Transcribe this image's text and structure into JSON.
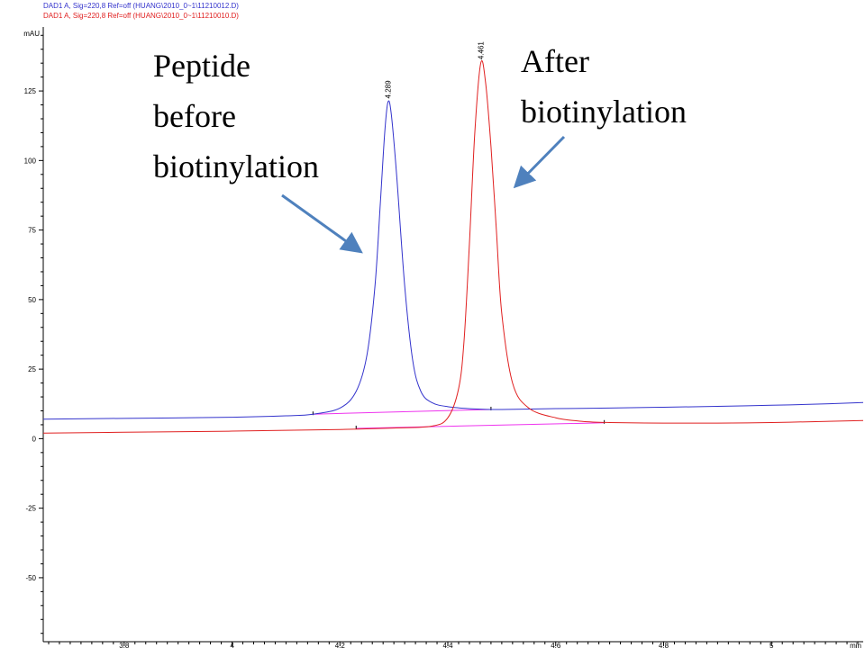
{
  "header": {
    "signal_1": "DAD1 A, Sig=220,8 Ref=off (HUANG\\2010_0~1\\11210012.D)",
    "signal_2": "DAD1 A, Sig=220,8 Ref=off (HUANG\\2010_0~1\\11210010.D)"
  },
  "annotations": {
    "before": [
      "Peptide",
      "before",
      "biotinylation"
    ],
    "after": [
      "After",
      "biotinylation"
    ]
  },
  "colors": {
    "before": "#3333cc",
    "after": "#e02020",
    "baseline": "#ee33ee",
    "arrow": "#4f81bd"
  },
  "chart_data": {
    "type": "line",
    "ylabel": "mAU",
    "xlabel": "min",
    "xlim": [
      3.65,
      5.17
    ],
    "ylim": [
      -73,
      148
    ],
    "xticks": [
      3.8,
      4,
      4.2,
      4.4,
      4.6,
      4.8,
      5
    ],
    "xtick_labels": [
      "3.8",
      "4",
      "4.2",
      "4.4",
      "4.6",
      "4.8",
      "5"
    ],
    "yticks": [
      125,
      100,
      75,
      50,
      25,
      0,
      -25,
      -50
    ],
    "ytick_labels": [
      "125",
      "100",
      "75",
      "50",
      "25",
      "0",
      "-25",
      "-50"
    ],
    "series": [
      {
        "key": "before",
        "peak_label": "4.289",
        "points": [
          [
            3.65,
            7
          ],
          [
            3.8,
            7.3
          ],
          [
            4.0,
            7.7
          ],
          [
            4.1,
            8.2
          ],
          [
            4.15,
            8.8
          ],
          [
            4.2,
            11
          ],
          [
            4.23,
            17
          ],
          [
            4.25,
            30
          ],
          [
            4.265,
            55
          ],
          [
            4.275,
            85
          ],
          [
            4.283,
            110
          ],
          [
            4.289,
            121
          ],
          [
            4.295,
            117
          ],
          [
            4.305,
            95
          ],
          [
            4.32,
            55
          ],
          [
            4.335,
            28
          ],
          [
            4.35,
            17
          ],
          [
            4.37,
            13
          ],
          [
            4.4,
            11.5
          ],
          [
            4.45,
            10.7
          ],
          [
            4.5,
            10.5
          ],
          [
            4.6,
            10.8
          ],
          [
            4.7,
            11
          ],
          [
            4.8,
            11.3
          ],
          [
            4.9,
            11.6
          ],
          [
            5.0,
            12
          ],
          [
            5.1,
            12.5
          ],
          [
            5.17,
            13
          ]
        ]
      },
      {
        "key": "after",
        "peak_label": "4.461",
        "points": [
          [
            3.65,
            2
          ],
          [
            3.8,
            2.3
          ],
          [
            4.0,
            2.7
          ],
          [
            4.1,
            3
          ],
          [
            4.2,
            3.3
          ],
          [
            4.3,
            3.8
          ],
          [
            4.37,
            4.5
          ],
          [
            4.4,
            7.5
          ],
          [
            4.42,
            18
          ],
          [
            4.43,
            35
          ],
          [
            4.44,
            70
          ],
          [
            4.45,
            110
          ],
          [
            4.461,
            135
          ],
          [
            4.47,
            128
          ],
          [
            4.48,
            105
          ],
          [
            4.49,
            75
          ],
          [
            4.5,
            45
          ],
          [
            4.52,
            20
          ],
          [
            4.55,
            11
          ],
          [
            4.6,
            7.5
          ],
          [
            4.65,
            6.2
          ],
          [
            4.7,
            5.8
          ],
          [
            4.8,
            5.6
          ],
          [
            4.9,
            5.6
          ],
          [
            5.0,
            5.8
          ],
          [
            5.1,
            6.2
          ],
          [
            5.17,
            6.5
          ]
        ]
      }
    ],
    "integration_baselines": [
      {
        "key": "before",
        "from": [
          4.15,
          8.8
        ],
        "to": [
          4.48,
          10.5
        ]
      },
      {
        "key": "after",
        "from": [
          4.23,
          3.7
        ],
        "to": [
          4.69,
          5.7
        ]
      }
    ]
  }
}
